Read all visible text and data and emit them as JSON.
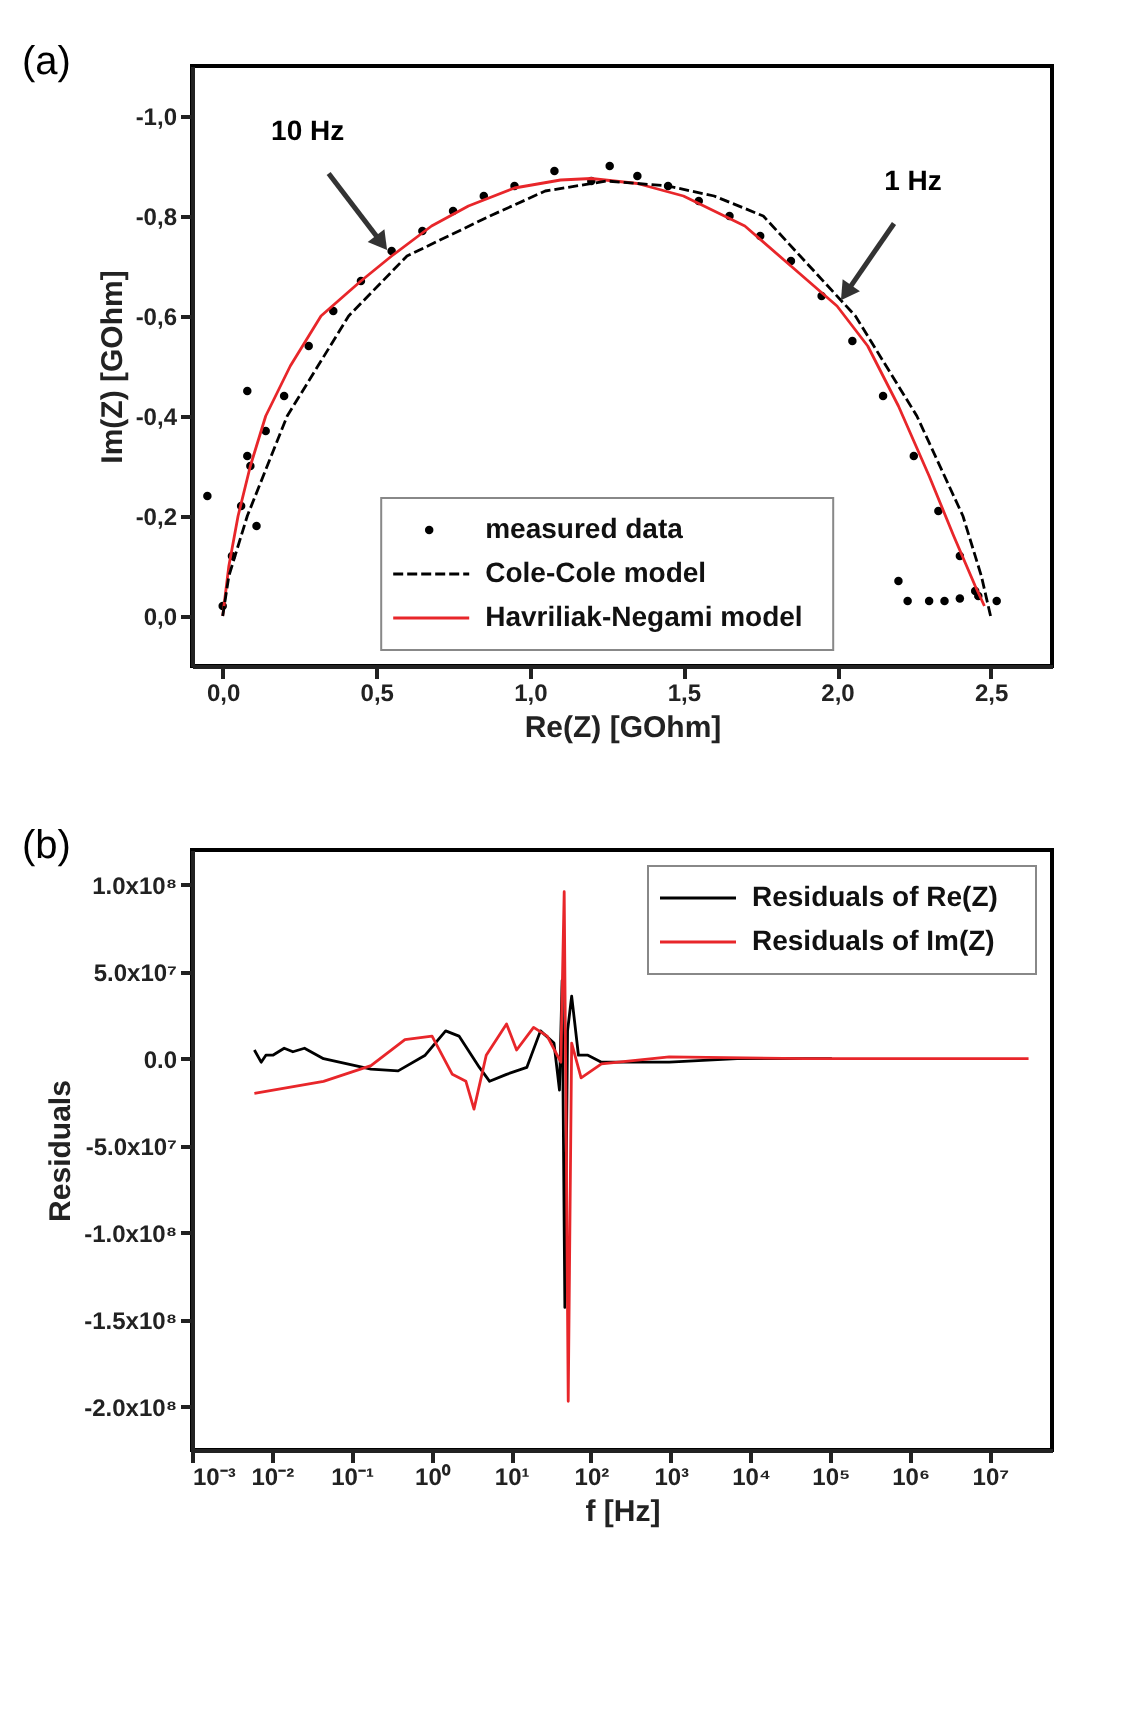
{
  "chart_data": [
    {
      "type": "line",
      "annotations": [
        "(a)",
        {
          "text": "10 Hz",
          "x": 0.55,
          "y": -0.72
        },
        {
          "text": "1 Hz",
          "x": 2.0,
          "y": -0.62
        }
      ],
      "xlabel": "Re(Z) [GOhm]",
      "ylabel": "Im(Z) [GOhm]",
      "xlim": [
        -0.1,
        2.7
      ],
      "ylim": [
        0.1,
        -1.1
      ],
      "xticks": [
        {
          "value": 0,
          "label": "0,0"
        },
        {
          "value": 0.5,
          "label": "0,5"
        },
        {
          "value": 1.0,
          "label": "1,0"
        },
        {
          "value": 1.5,
          "label": "1,5"
        },
        {
          "value": 2.0,
          "label": "2,0"
        },
        {
          "value": 2.5,
          "label": "2,5"
        }
      ],
      "yticks": [
        {
          "value": 0,
          "label": "0,0"
        },
        {
          "value": -0.2,
          "label": "-0,2"
        },
        {
          "value": -0.4,
          "label": "-0,4"
        },
        {
          "value": -0.6,
          "label": "-0,6"
        },
        {
          "value": -0.8,
          "label": "-0,8"
        },
        {
          "value": -1.0,
          "label": "-1,0"
        }
      ],
      "legend": "bottom",
      "grid": false,
      "series": [
        {
          "name": "measured data",
          "type": "scatter",
          "marker": "circle",
          "color": "#000000",
          "x": [
            0.0,
            0.03,
            0.06,
            0.09,
            0.08,
            0.08,
            0.11,
            -0.05,
            0.14,
            0.2,
            0.28,
            0.36,
            0.45,
            0.55,
            0.65,
            0.75,
            0.85,
            0.95,
            1.08,
            1.2,
            1.26,
            1.35,
            1.45,
            1.55,
            1.65,
            1.75,
            1.85,
            1.95,
            2.05,
            2.15,
            2.25,
            2.33,
            2.4,
            2.45,
            2.2,
            2.23,
            2.3,
            2.35,
            2.4,
            2.46,
            2.52
          ],
          "values": [
            -0.02,
            -0.12,
            -0.22,
            -0.3,
            -0.32,
            -0.45,
            -0.18,
            -0.24,
            -0.37,
            -0.44,
            -0.54,
            -0.61,
            -0.67,
            -0.73,
            -0.77,
            -0.81,
            -0.84,
            -0.86,
            -0.89,
            -0.87,
            -0.9,
            -0.88,
            -0.86,
            -0.83,
            -0.8,
            -0.76,
            -0.71,
            -0.64,
            -0.55,
            -0.44,
            -0.32,
            -0.21,
            -0.12,
            -0.05,
            -0.07,
            -0.03,
            -0.03,
            -0.03,
            -0.035,
            -0.04,
            -0.03
          ]
        },
        {
          "name": "Cole-Cole model",
          "line_style": "dashed",
          "color": "#000000",
          "x": [
            0.0,
            0.02,
            0.08,
            0.21,
            0.41,
            0.6,
            0.87,
            1.05,
            1.25,
            1.45,
            1.6,
            1.76,
            2.06,
            2.26,
            2.41,
            2.47,
            2.5
          ],
          "values": [
            0.0,
            -0.08,
            -0.2,
            -0.4,
            -0.6,
            -0.72,
            -0.8,
            -0.85,
            -0.87,
            -0.86,
            -0.84,
            -0.8,
            -0.6,
            -0.4,
            -0.2,
            -0.08,
            0.0
          ]
        },
        {
          "name": "Havriliak-Negami model",
          "line_style": "solid",
          "color": "#e8262a",
          "x": [
            0.0,
            0.02,
            0.05,
            0.09,
            0.14,
            0.22,
            0.32,
            0.45,
            0.55,
            0.68,
            0.8,
            0.95,
            1.1,
            1.2,
            1.35,
            1.5,
            1.7,
            1.85,
            2.0,
            2.1,
            2.2,
            2.3,
            2.38,
            2.45,
            2.48
          ],
          "values": [
            0.0,
            -0.1,
            -0.2,
            -0.3,
            -0.4,
            -0.5,
            -0.6,
            -0.67,
            -0.72,
            -0.78,
            -0.82,
            -0.856,
            -0.872,
            -0.875,
            -0.865,
            -0.84,
            -0.78,
            -0.7,
            -0.62,
            -0.54,
            -0.42,
            -0.28,
            -0.16,
            -0.06,
            -0.02
          ]
        }
      ]
    },
    {
      "type": "line",
      "annotations": [
        "(b)"
      ],
      "xlabel": "f [Hz]",
      "ylabel": "Residuals",
      "log": "x",
      "xlim": [
        0.001,
        60000000
      ],
      "ylim": [
        -225000000,
        120000000
      ],
      "xticks": [
        {
          "value": 0.001,
          "label": "10⁻³"
        },
        {
          "value": 0.01,
          "label": "10⁻²"
        },
        {
          "value": 0.1,
          "label": "10⁻¹"
        },
        {
          "value": 1,
          "label": "10⁰"
        },
        {
          "value": 10,
          "label": "10¹"
        },
        {
          "value": 100,
          "label": "10²"
        },
        {
          "value": 1000,
          "label": "10³"
        },
        {
          "value": 10000,
          "label": "10⁴"
        },
        {
          "value": 100000,
          "label": "10⁵"
        },
        {
          "value": 1000000,
          "label": "10⁶"
        },
        {
          "value": 10000000,
          "label": "10⁷"
        }
      ],
      "yticks": [
        {
          "value": 100000000,
          "label": "1.0x10⁸"
        },
        {
          "value": 50000000,
          "label": "5.0x10⁷"
        },
        {
          "value": 0,
          "label": "0.0"
        },
        {
          "value": -50000000,
          "label": "-5.0x10⁷"
        },
        {
          "value": -100000000,
          "label": "-1.0x10⁸"
        },
        {
          "value": -150000000,
          "label": "-1.5x10⁸"
        },
        {
          "value": -200000000,
          "label": "-2.0x10⁸"
        }
      ],
      "legend": "top right",
      "grid": false,
      "series": [
        {
          "name": "Residuals of Re(Z)",
          "color": "#000000",
          "x": [
            0.00605,
            0.00736,
            0.00843,
            0.0103,
            0.0143,
            0.0184,
            0.0257,
            0.0445,
            0.175,
            0.383,
            0.837,
            1.51,
            2.22,
            4.0,
            5.37,
            8.75,
            15.7,
            23.3,
            34.4,
            40.3,
            43.5,
            47.1,
            50.9,
            57.3,
            69.7,
            91.6,
            135.5,
            957,
            6780,
            104700
          ],
          "values": [
            5000000,
            -2000000,
            2000000,
            2000000,
            6000000,
            4000000,
            6000000,
            0,
            -6000000,
            -7000000,
            2000000,
            16000000,
            13000000,
            -5000000,
            -13000000,
            -9000000,
            -5000000,
            16000000,
            9000000,
            -18000000,
            45000000,
            -143000000,
            16000000,
            36000000,
            2000000,
            2000000,
            -2000000,
            -2000000,
            0,
            0
          ]
        },
        {
          "name": "Residuals of Im(Z)",
          "color": "#e8262a",
          "x": [
            0.00605,
            0.0445,
            0.175,
            0.466,
            1.02,
            1.83,
            2.71,
            3.42,
            4.87,
            8.75,
            11.7,
            19.1,
            28.3,
            41.9,
            46.2,
            49.0,
            51.9,
            57.3,
            75.3,
            135.5,
            957,
            47900,
            30500000
          ],
          "values": [
            -20000000,
            -13000000,
            -4000000,
            11000000,
            13000000,
            -9000000,
            -13000000,
            -29000000,
            2000000,
            20000000,
            5000000,
            18000000,
            13000000,
            -2000000,
            96000000,
            -45000000,
            -197000000,
            9000000,
            -11000000,
            -3000000,
            1000000,
            0,
            0
          ]
        }
      ]
    }
  ]
}
